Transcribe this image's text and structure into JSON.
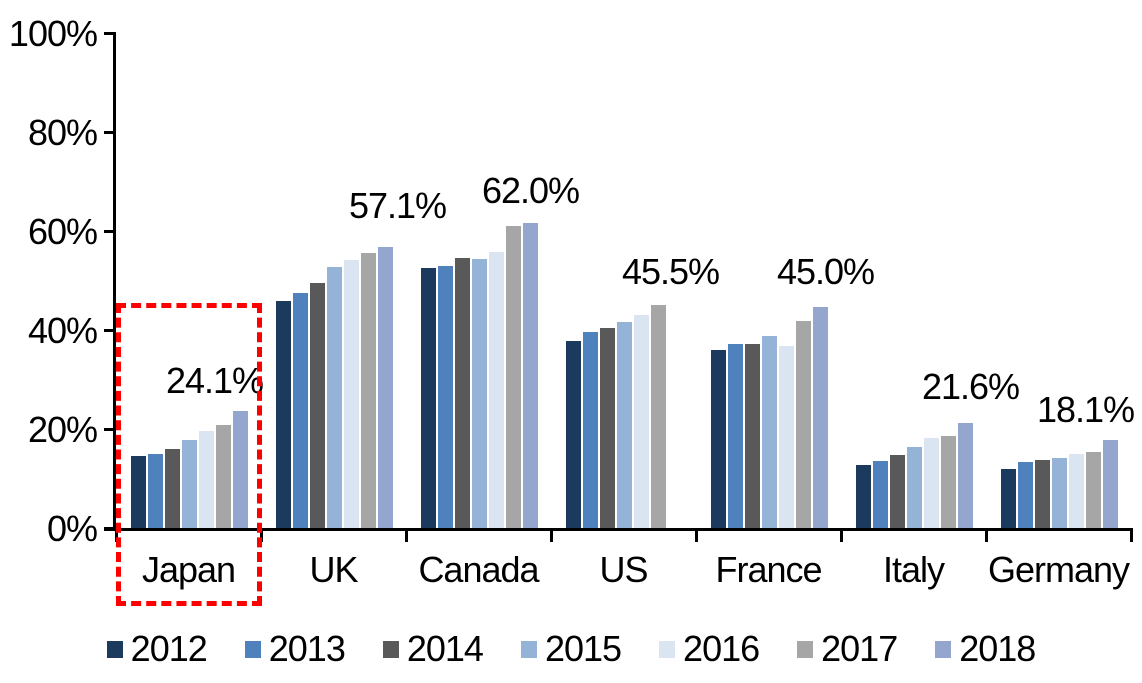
{
  "chart_data": {
    "type": "bar",
    "title": "",
    "categories": [
      "Japan",
      "UK",
      "Canada",
      "US",
      "France",
      "Italy",
      "Germany"
    ],
    "series": [
      {
        "name": "2012",
        "color": "#1C3A5E",
        "values": [
          15.0,
          46.2,
          53.0,
          38.2,
          36.4,
          13.2,
          12.4
        ]
      },
      {
        "name": "2013",
        "color": "#4F81BD",
        "values": [
          15.3,
          47.8,
          53.4,
          40.0,
          37.5,
          14.0,
          13.7
        ]
      },
      {
        "name": "2014",
        "color": "#595959",
        "values": [
          16.3,
          50.0,
          54.9,
          40.8,
          37.5,
          15.1,
          14.2
        ]
      },
      {
        "name": "2015",
        "color": "#95B3D7",
        "values": [
          18.2,
          53.1,
          54.7,
          42.0,
          39.1,
          16.7,
          14.6
        ]
      },
      {
        "name": "2016",
        "color": "#DBE5F1",
        "values": [
          20.0,
          54.6,
          56.2,
          43.5,
          37.2,
          18.6,
          15.3
        ]
      },
      {
        "name": "2017",
        "color": "#A6A6A6",
        "values": [
          21.3,
          55.9,
          61.5,
          45.5,
          42.3,
          19.0,
          15.8
        ]
      },
      {
        "name": "2018",
        "color": "#94A6CE",
        "values": [
          24.1,
          57.1,
          62.0,
          null,
          45.0,
          21.6,
          18.1
        ]
      }
    ],
    "data_labels": [
      {
        "category": "Japan",
        "series": "2018",
        "text": "24.1%"
      },
      {
        "category": "UK",
        "series": "2018",
        "text": "57.1%"
      },
      {
        "category": "Canada",
        "series": "2018",
        "text": "62.0%"
      },
      {
        "category": "US",
        "series": "2017",
        "text": "45.5%"
      },
      {
        "category": "France",
        "series": "2018",
        "text": "45.0%"
      },
      {
        "category": "Italy",
        "series": "2018",
        "text": "21.6%"
      },
      {
        "category": "Germany",
        "series": "2018",
        "text": "18.1%"
      }
    ],
    "y_axis": {
      "range": [
        0,
        100
      ],
      "ticks": [
        {
          "value": 0,
          "label": "0%"
        },
        {
          "value": 20,
          "label": "20%"
        },
        {
          "value": 40,
          "label": "40%"
        },
        {
          "value": 60,
          "label": "60%"
        },
        {
          "value": 80,
          "label": "80%"
        },
        {
          "value": 100,
          "label": "100%"
        }
      ]
    },
    "legend": {
      "position": "bottom",
      "entries": [
        "2012",
        "2013",
        "2014",
        "2015",
        "2016",
        "2017",
        "2018"
      ]
    },
    "grid": false,
    "annotations": {
      "highlight_box": {
        "category": "Japan",
        "color": "#FF0000",
        "style": "dashed"
      }
    }
  }
}
